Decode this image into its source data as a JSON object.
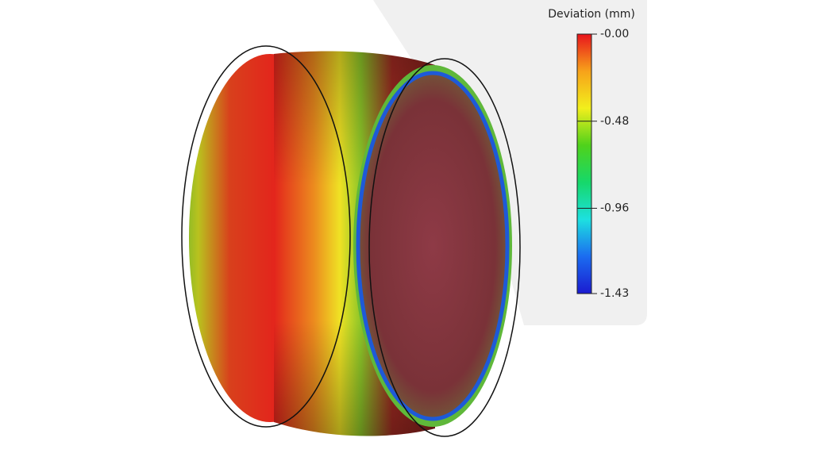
{
  "legend": {
    "title": "Deviation (mm)",
    "ticks": [
      {
        "value": 0,
        "label": "-0.00"
      },
      -0.48,
      -0.96,
      -1.43
    ],
    "colors": [
      "#e8141c",
      "#f7a21a",
      "#f2ef1c",
      "#4fd21b",
      "#16d86a",
      "#1de0e0",
      "#1b6cf0",
      "#1b1bd0"
    ]
  }
}
